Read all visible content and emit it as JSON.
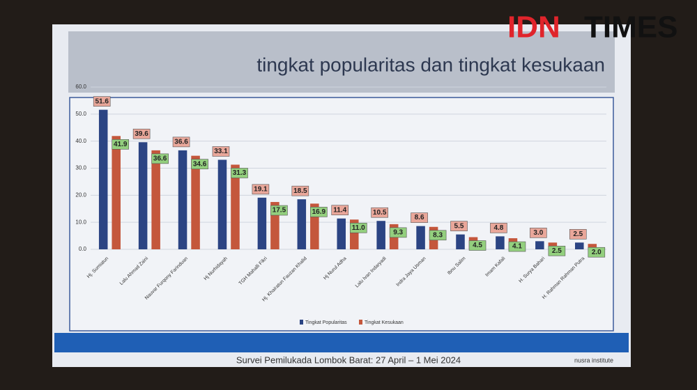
{
  "brand": {
    "left": "IDN",
    "right": "TIMES"
  },
  "chart_data": {
    "type": "bar",
    "title": "tingkat popularitas dan tingkat kesukaan",
    "categories": [
      "Hj. Sumiatun",
      "Lalu Ahmad Zaini",
      "Nauvar Furqony Farinduan",
      "Hj Nurhidayah",
      "TGH Mahalli Fikri",
      "Hj. Khairatun Fauzan Khalid",
      "Hj Nurul Adha",
      "Lalu Ivan Indaryadi",
      "Indra Jaya Usman",
      "Ibnu Salim",
      "Imam Kafali",
      "H. Surya Bahari",
      "H. Rahman Rahman Putra"
    ],
    "series": [
      {
        "name": "Tingkat Popularitas",
        "color": "#2b4483",
        "label_color": "#e9a79a",
        "values": [
          51.6,
          39.6,
          36.6,
          33.1,
          19.1,
          18.5,
          11.4,
          10.5,
          8.6,
          5.5,
          4.8,
          3.0,
          2.5
        ],
        "value_labels": [
          "51.6",
          "39.6",
          "36.6",
          "33.1",
          "19.1",
          "18.5",
          "11.4",
          "10.5",
          "8.6",
          "5.5",
          "4.8",
          "3.0",
          "2.5"
        ]
      },
      {
        "name": "Tingkat Kesukaan",
        "color": "#c4573c",
        "label_color": "#93cf7e",
        "values": [
          41.9,
          36.6,
          34.6,
          31.3,
          17.5,
          16.9,
          11.0,
          9.3,
          8.3,
          4.5,
          4.1,
          2.5,
          2.0
        ],
        "value_labels": [
          "41.9",
          "36.6",
          "34.6",
          "31.3",
          "17.5",
          "16.9",
          "11.0",
          "9.3",
          "8.3",
          "4.5",
          "4.1",
          "2.5",
          "2.0"
        ]
      }
    ],
    "ylim": [
      0,
      60
    ],
    "yticks": [
      {
        "value": 0,
        "label": "0.0"
      },
      {
        "value": 10,
        "label": "10.0"
      },
      {
        "value": 20,
        "label": "20.0"
      },
      {
        "value": 30,
        "label": "30.0"
      },
      {
        "value": 40,
        "label": "40.0"
      },
      {
        "value": 50,
        "label": "50.0"
      },
      {
        "value": 60,
        "label": "60.0"
      }
    ],
    "grid": true,
    "legend": "bottom"
  },
  "footer": {
    "survey": "Survei Pemilukada Lombok Barat: 27 April – 1 Mei 2024",
    "source": "nusra institute"
  }
}
